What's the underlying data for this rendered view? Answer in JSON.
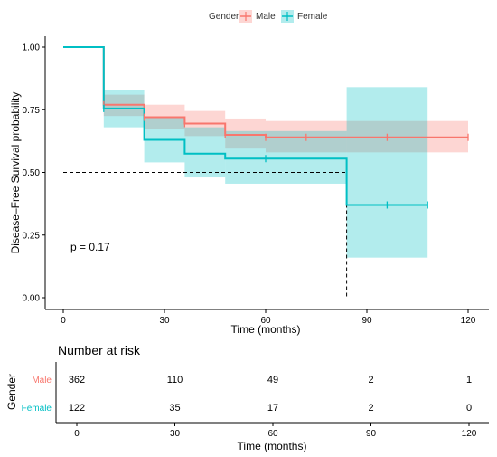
{
  "chart_data": {
    "type": "line",
    "subtype": "kaplan-meier",
    "legend": {
      "title": "Gender",
      "placement": "top",
      "entries": [
        {
          "name": "Male",
          "color": "#f8766d"
        },
        {
          "name": "Female",
          "color": "#00bfc4"
        }
      ]
    },
    "xlabel": "Time (months)",
    "ylabel": "Disease–Free Survival probability",
    "xlim": [
      0,
      120
    ],
    "ylim": [
      0,
      1
    ],
    "xticks": [
      0,
      30,
      60,
      90,
      120
    ],
    "yticks": [
      0,
      0.25,
      0.5,
      0.75,
      1
    ],
    "ytick_labels": [
      "0.00",
      "0.25",
      "0.50",
      "0.75",
      "1.00"
    ],
    "annotation": "p = 0.17",
    "median_line": {
      "y": 0.5,
      "x": 84
    },
    "grid": false,
    "series": [
      {
        "name": "Male",
        "color": "#f8766d",
        "fill": "#f8766d",
        "steps": [
          [
            0,
            1.0
          ],
          [
            12,
            0.77
          ],
          [
            24,
            0.72
          ],
          [
            36,
            0.695
          ],
          [
            48,
            0.65
          ],
          [
            60,
            0.64
          ],
          [
            120,
            0.64
          ]
        ],
        "ci": [
          [
            0,
            1.0,
            1.0
          ],
          [
            12,
            0.725,
            0.81
          ],
          [
            24,
            0.675,
            0.77
          ],
          [
            36,
            0.645,
            0.745
          ],
          [
            48,
            0.595,
            0.715
          ],
          [
            60,
            0.58,
            0.705
          ],
          [
            120,
            0.58,
            0.705
          ]
        ],
        "censor": [
          12,
          24,
          36,
          48,
          60,
          72,
          96,
          120
        ]
      },
      {
        "name": "Female",
        "color": "#00bfc4",
        "fill": "#00bfc4",
        "steps": [
          [
            0,
            1.0
          ],
          [
            12,
            0.755
          ],
          [
            24,
            0.63
          ],
          [
            36,
            0.575
          ],
          [
            48,
            0.555
          ],
          [
            84,
            0.37
          ],
          [
            108,
            0.37
          ]
        ],
        "ci": [
          [
            0,
            1.0,
            1.0
          ],
          [
            12,
            0.68,
            0.83
          ],
          [
            24,
            0.54,
            0.72
          ],
          [
            36,
            0.48,
            0.68
          ],
          [
            48,
            0.455,
            0.665
          ],
          [
            84,
            0.16,
            0.84
          ],
          [
            108,
            0.16,
            0.84
          ]
        ],
        "censor": [
          12,
          60,
          96,
          108
        ]
      }
    ]
  },
  "risk_table": {
    "title": "Number at risk",
    "ylabel": "Gender",
    "xlabel": "Time (months)",
    "times": [
      0,
      30,
      60,
      90,
      120
    ],
    "rows": [
      {
        "name": "Male",
        "color": "#f8766d",
        "counts": [
          "362",
          "110",
          "49",
          "2",
          "1"
        ]
      },
      {
        "name": "Female",
        "color": "#00bfc4",
        "counts": [
          "122",
          "35",
          "17",
          "2",
          "0"
        ]
      }
    ]
  }
}
